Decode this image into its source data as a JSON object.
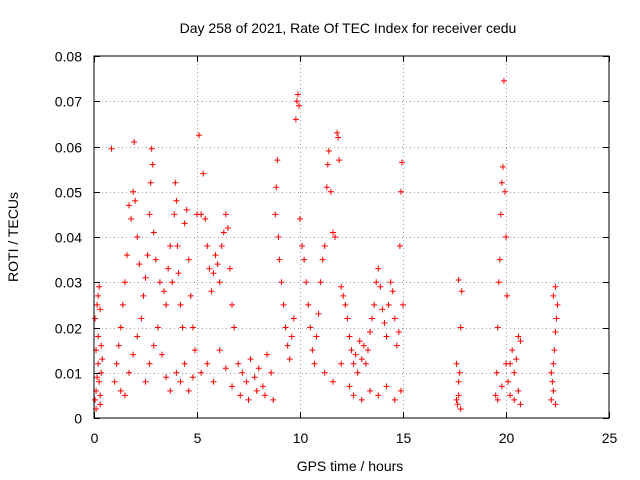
{
  "chart_data": {
    "type": "scatter",
    "title": "Day 258 of 2021, Rate Of TEC Index for receiver cedu",
    "xlabel": "GPS time / hours",
    "ylabel": "ROTI / TECUs",
    "xlim": [
      0,
      25
    ],
    "ylim": [
      0,
      0.08
    ],
    "xticks": [
      0,
      5,
      10,
      15,
      20,
      25
    ],
    "yticks": [
      0,
      0.01,
      0.02,
      0.03,
      0.04,
      0.05,
      0.06,
      0.07,
      0.08
    ],
    "xtick_labels": [
      "0",
      "5",
      "10",
      "15",
      "20",
      "25"
    ],
    "ytick_labels": [
      "0",
      "0.01",
      "0.02",
      "0.03",
      "0.04",
      "0.05",
      "0.06",
      "0.07",
      "0.08"
    ],
    "grid": true,
    "marker": "+",
    "series": [
      {
        "name": "ROTI",
        "color": "#ff0000",
        "points": [
          [
            0.05,
            0.004
          ],
          [
            0.1,
            0.006
          ],
          [
            0.15,
            0.009
          ],
          [
            0.2,
            0.012
          ],
          [
            0.25,
            0.008
          ],
          [
            0.3,
            0.005
          ],
          [
            0.1,
            0.015
          ],
          [
            0.2,
            0.018
          ],
          [
            0.05,
            0.022
          ],
          [
            0.15,
            0.025
          ],
          [
            0.2,
            0.027
          ],
          [
            0.25,
            0.029
          ],
          [
            0.3,
            0.024
          ],
          [
            0.35,
            0.016
          ],
          [
            0.4,
            0.013
          ],
          [
            0.35,
            0.01
          ],
          [
            0.3,
            0.003
          ],
          [
            0.1,
            0.002
          ],
          [
            0.85,
            0.0595
          ],
          [
            1.0,
            0.008
          ],
          [
            1.1,
            0.012
          ],
          [
            1.2,
            0.016
          ],
          [
            1.3,
            0.02
          ],
          [
            1.4,
            0.025
          ],
          [
            1.5,
            0.03
          ],
          [
            1.6,
            0.036
          ],
          [
            1.7,
            0.047
          ],
          [
            1.8,
            0.044
          ],
          [
            1.9,
            0.05
          ],
          [
            1.95,
            0.061
          ],
          [
            2.0,
            0.048
          ],
          [
            2.1,
            0.04
          ],
          [
            2.2,
            0.034
          ],
          [
            1.3,
            0.006
          ],
          [
            1.5,
            0.005
          ],
          [
            1.7,
            0.01
          ],
          [
            1.9,
            0.014
          ],
          [
            2.1,
            0.018
          ],
          [
            2.3,
            0.022
          ],
          [
            2.4,
            0.027
          ],
          [
            2.5,
            0.031
          ],
          [
            2.6,
            0.036
          ],
          [
            2.7,
            0.045
          ],
          [
            2.75,
            0.052
          ],
          [
            2.8,
            0.0595
          ],
          [
            2.85,
            0.056
          ],
          [
            2.9,
            0.041
          ],
          [
            3.0,
            0.035
          ],
          [
            3.2,
            0.03
          ],
          [
            3.4,
            0.028
          ],
          [
            3.5,
            0.025
          ],
          [
            3.6,
            0.033
          ],
          [
            3.7,
            0.038
          ],
          [
            3.8,
            0.03
          ],
          [
            2.5,
            0.008
          ],
          [
            2.7,
            0.012
          ],
          [
            2.9,
            0.016
          ],
          [
            3.1,
            0.02
          ],
          [
            3.3,
            0.014
          ],
          [
            3.5,
            0.009
          ],
          [
            3.7,
            0.006
          ],
          [
            3.9,
            0.045
          ],
          [
            3.95,
            0.052
          ],
          [
            4.0,
            0.048
          ],
          [
            4.05,
            0.038
          ],
          [
            4.1,
            0.032
          ],
          [
            4.2,
            0.025
          ],
          [
            4.3,
            0.02
          ],
          [
            4.4,
            0.043
          ],
          [
            4.5,
            0.046
          ],
          [
            4.6,
            0.035
          ],
          [
            4.7,
            0.027
          ],
          [
            4.8,
            0.02
          ],
          [
            4.9,
            0.015
          ],
          [
            4.0,
            0.01
          ],
          [
            4.2,
            0.008
          ],
          [
            4.4,
            0.012
          ],
          [
            4.6,
            0.006
          ],
          [
            4.8,
            0.009
          ],
          [
            5.0,
            0.045
          ],
          [
            5.1,
            0.0625
          ],
          [
            5.2,
            0.045
          ],
          [
            5.3,
            0.054
          ],
          [
            5.4,
            0.044
          ],
          [
            5.5,
            0.038
          ],
          [
            5.6,
            0.033
          ],
          [
            5.7,
            0.028
          ],
          [
            5.8,
            0.032
          ],
          [
            5.9,
            0.036
          ],
          [
            6.0,
            0.034
          ],
          [
            6.1,
            0.03
          ],
          [
            6.2,
            0.038
          ],
          [
            6.3,
            0.041
          ],
          [
            6.4,
            0.045
          ],
          [
            6.5,
            0.042
          ],
          [
            6.6,
            0.033
          ],
          [
            6.7,
            0.025
          ],
          [
            6.8,
            0.02
          ],
          [
            5.2,
            0.01
          ],
          [
            5.5,
            0.012
          ],
          [
            5.8,
            0.008
          ],
          [
            6.1,
            0.015
          ],
          [
            6.4,
            0.011
          ],
          [
            6.7,
            0.007
          ],
          [
            7.0,
            0.012
          ],
          [
            7.2,
            0.01
          ],
          [
            7.4,
            0.008
          ],
          [
            7.6,
            0.013
          ],
          [
            7.8,
            0.009
          ],
          [
            8.0,
            0.011
          ],
          [
            8.2,
            0.007
          ],
          [
            8.4,
            0.014
          ],
          [
            8.6,
            0.01
          ],
          [
            7.1,
            0.005
          ],
          [
            7.5,
            0.004
          ],
          [
            7.9,
            0.006
          ],
          [
            8.3,
            0.005
          ],
          [
            8.7,
            0.004
          ],
          [
            8.8,
            0.045
          ],
          [
            8.85,
            0.051
          ],
          [
            8.9,
            0.057
          ],
          [
            8.95,
            0.04
          ],
          [
            9.0,
            0.035
          ],
          [
            9.1,
            0.03
          ],
          [
            9.2,
            0.025
          ],
          [
            9.3,
            0.02
          ],
          [
            9.4,
            0.016
          ],
          [
            9.5,
            0.013
          ],
          [
            9.6,
            0.018
          ],
          [
            9.7,
            0.022
          ],
          [
            9.8,
            0.066
          ],
          [
            9.85,
            0.07
          ],
          [
            9.9,
            0.0715
          ],
          [
            9.95,
            0.069
          ],
          [
            10.0,
            0.044
          ],
          [
            10.1,
            0.038
          ],
          [
            10.2,
            0.035
          ],
          [
            10.3,
            0.03
          ],
          [
            10.4,
            0.025
          ],
          [
            10.5,
            0.02
          ],
          [
            10.6,
            0.015
          ],
          [
            10.7,
            0.012
          ],
          [
            10.8,
            0.018
          ],
          [
            10.9,
            0.023
          ],
          [
            11.0,
            0.03
          ],
          [
            11.1,
            0.035
          ],
          [
            11.2,
            0.038
          ],
          [
            11.3,
            0.051
          ],
          [
            11.35,
            0.056
          ],
          [
            11.4,
            0.059
          ],
          [
            11.5,
            0.05
          ],
          [
            11.6,
            0.041
          ],
          [
            11.7,
            0.04
          ],
          [
            11.8,
            0.063
          ],
          [
            11.85,
            0.062
          ],
          [
            11.9,
            0.057
          ],
          [
            12.0,
            0.029
          ],
          [
            12.1,
            0.027
          ],
          [
            12.2,
            0.025
          ],
          [
            12.3,
            0.022
          ],
          [
            12.4,
            0.018
          ],
          [
            11.2,
            0.01
          ],
          [
            11.6,
            0.008
          ],
          [
            12.0,
            0.012
          ],
          [
            12.4,
            0.007
          ],
          [
            12.5,
            0.015
          ],
          [
            12.6,
            0.012
          ],
          [
            12.7,
            0.014
          ],
          [
            12.8,
            0.01
          ],
          [
            12.9,
            0.017
          ],
          [
            13.0,
            0.013
          ],
          [
            13.1,
            0.016
          ],
          [
            13.2,
            0.012
          ],
          [
            13.3,
            0.015
          ],
          [
            13.4,
            0.019
          ],
          [
            13.5,
            0.022
          ],
          [
            13.6,
            0.025
          ],
          [
            13.7,
            0.03
          ],
          [
            13.8,
            0.033
          ],
          [
            13.9,
            0.029
          ],
          [
            14.0,
            0.024
          ],
          [
            14.1,
            0.021
          ],
          [
            14.2,
            0.018
          ],
          [
            14.3,
            0.025
          ],
          [
            14.4,
            0.03
          ],
          [
            14.5,
            0.028
          ],
          [
            14.6,
            0.022
          ],
          [
            14.7,
            0.016
          ],
          [
            14.8,
            0.019
          ],
          [
            14.85,
            0.038
          ],
          [
            14.9,
            0.05
          ],
          [
            14.95,
            0.0565
          ],
          [
            15.0,
            0.025
          ],
          [
            12.6,
            0.005
          ],
          [
            13.0,
            0.004
          ],
          [
            13.4,
            0.006
          ],
          [
            13.8,
            0.005
          ],
          [
            14.2,
            0.007
          ],
          [
            14.6,
            0.004
          ],
          [
            14.9,
            0.006
          ],
          [
            17.6,
            0.004
          ],
          [
            17.65,
            0.003
          ],
          [
            17.7,
            0.005
          ],
          [
            17.75,
            0.01
          ],
          [
            17.8,
            0.02
          ],
          [
            17.85,
            0.028
          ],
          [
            17.7,
            0.0305
          ],
          [
            17.6,
            0.012
          ],
          [
            17.7,
            0.008
          ],
          [
            17.8,
            0.002
          ],
          [
            19.5,
            0.005
          ],
          [
            19.55,
            0.01
          ],
          [
            19.6,
            0.02
          ],
          [
            19.65,
            0.03
          ],
          [
            19.7,
            0.035
          ],
          [
            19.75,
            0.045
          ],
          [
            19.8,
            0.052
          ],
          [
            19.85,
            0.0555
          ],
          [
            19.9,
            0.0745
          ],
          [
            19.95,
            0.05
          ],
          [
            20.0,
            0.04
          ],
          [
            20.05,
            0.027
          ],
          [
            19.6,
            0.004
          ],
          [
            19.8,
            0.007
          ],
          [
            20.0,
            0.012
          ],
          [
            20.1,
            0.008
          ],
          [
            20.2,
            0.012
          ],
          [
            20.3,
            0.015
          ],
          [
            20.4,
            0.01
          ],
          [
            20.5,
            0.013
          ],
          [
            20.6,
            0.018
          ],
          [
            20.7,
            0.017
          ],
          [
            20.2,
            0.005
          ],
          [
            20.4,
            0.004
          ],
          [
            20.6,
            0.006
          ],
          [
            20.7,
            0.003
          ],
          [
            22.2,
            0.004
          ],
          [
            22.25,
            0.008
          ],
          [
            22.3,
            0.012
          ],
          [
            22.35,
            0.015
          ],
          [
            22.4,
            0.019
          ],
          [
            22.45,
            0.022
          ],
          [
            22.5,
            0.025
          ],
          [
            22.4,
            0.029
          ],
          [
            22.3,
            0.027
          ],
          [
            22.2,
            0.01
          ],
          [
            22.3,
            0.006
          ],
          [
            22.4,
            0.003
          ]
        ]
      }
    ]
  }
}
